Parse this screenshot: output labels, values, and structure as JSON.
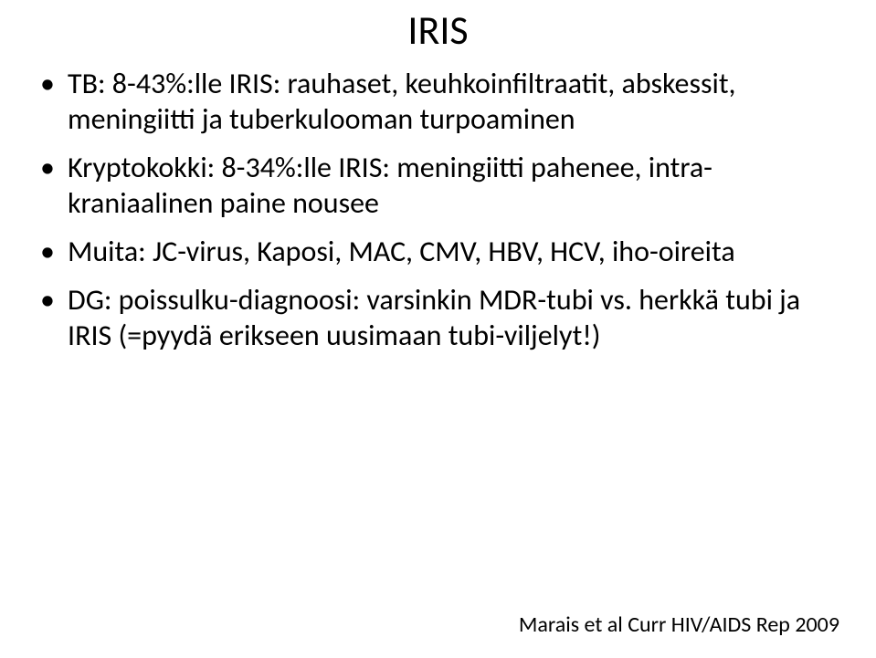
{
  "slide": {
    "title": "IRIS",
    "bullets": [
      "TB: 8-43%:lle IRIS: rauhaset, keuhkoinfiltraatit, abskessit, meningiitti ja tuberkulooman turpoaminen",
      "Kryptokokki: 8-34%:lle IRIS: meningiitti pahenee, intra-kraniaalinen paine nousee",
      "Muita: JC-virus, Kaposi, MAC, CMV, HBV, HCV, iho-oireita",
      "DG: poissulku-diagnoosi: varsinkin MDR-tubi vs. herkkä tubi ja IRIS (=pyydä erikseen uusimaan tubi-viljelyt!)"
    ],
    "citation": "Marais et al Curr HIV/AIDS Rep 2009"
  }
}
